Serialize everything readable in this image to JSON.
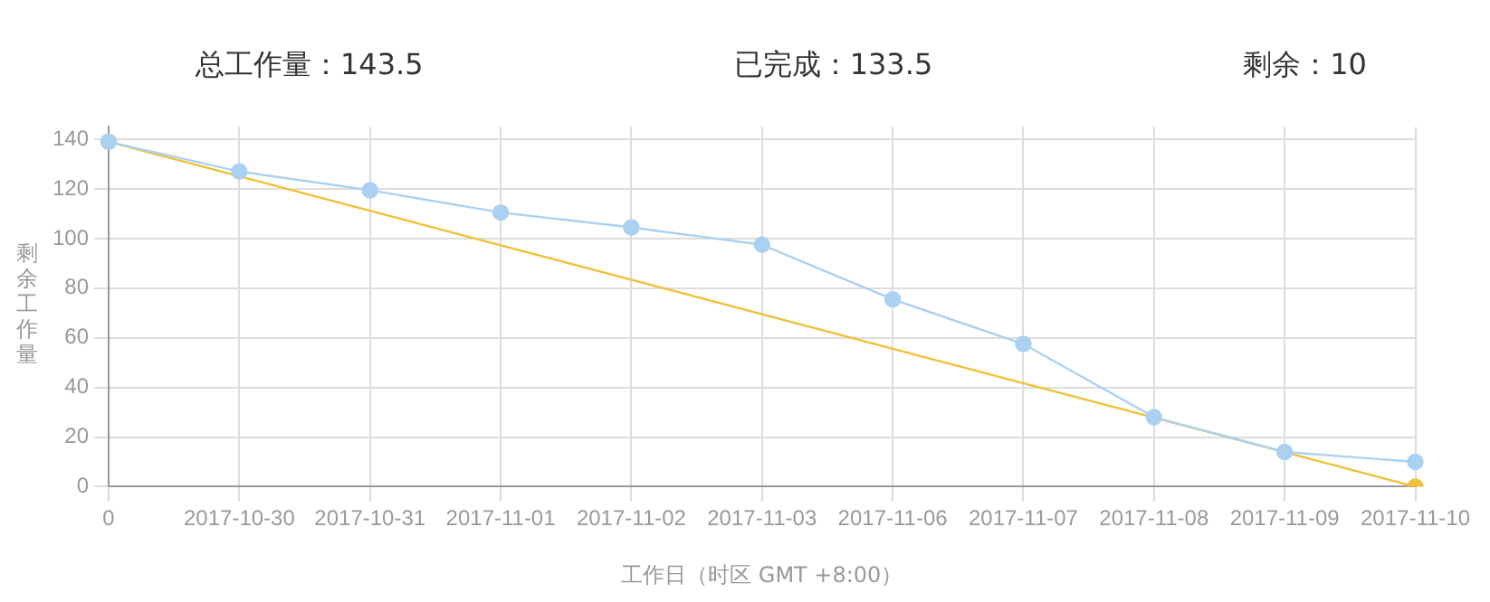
{
  "chart_data": {
    "type": "line",
    "annotations": [
      "总工作量：143.5",
      "已完成：133.5",
      "剩余：10"
    ],
    "xlabel": "工作日（时区 GMT +8:00）",
    "ylabel": "剩余工作量",
    "categories": [
      "0",
      "2017-10-30",
      "2017-10-31",
      "2017-11-01",
      "2017-11-02",
      "2017-11-03",
      "2017-11-06",
      "2017-11-07",
      "2017-11-08",
      "2017-11-09",
      "2017-11-10"
    ],
    "series": [
      {
        "color": "#aad1f2",
        "values": [
          139,
          127,
          119.5,
          110.5,
          104.5,
          97.5,
          75.5,
          57.5,
          28,
          14,
          10
        ]
      },
      {
        "color": "#f0c23c",
        "values": [
          139,
          null,
          null,
          null,
          null,
          null,
          null,
          null,
          null,
          null,
          0
        ]
      }
    ],
    "ylim": [
      0,
      145
    ],
    "yticks": [
      0,
      20,
      40,
      60,
      80,
      100,
      120,
      140
    ],
    "grid": true,
    "legend": false,
    "marker": "circle",
    "line_style": "solid"
  }
}
